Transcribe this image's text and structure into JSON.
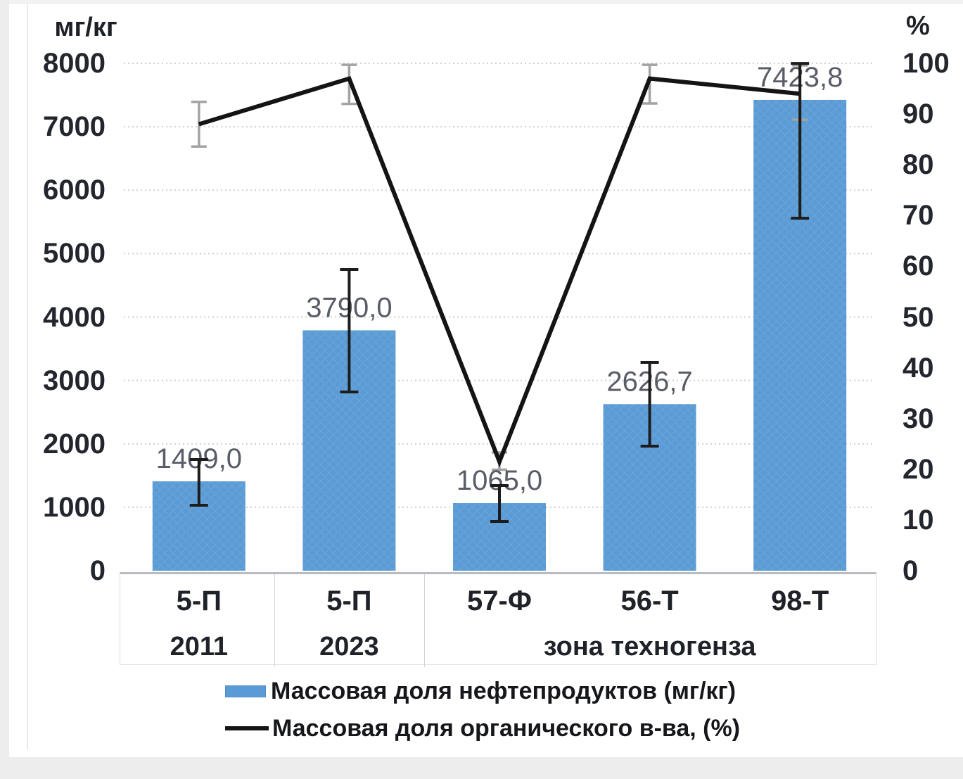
{
  "chart_data": {
    "type": "combo-bar-line",
    "categories": [
      "5-П",
      "5-П",
      "57-Ф",
      "56-Т",
      "98-Т"
    ],
    "category_groups": [
      {
        "label": "2011",
        "span": 1
      },
      {
        "label": "2023",
        "span": 1
      },
      {
        "label": "зона техногенза",
        "span": 3
      }
    ],
    "left_axis": {
      "unit": "мг/кг",
      "min": 0,
      "max": 8000,
      "step": 1000,
      "ticks": [
        "8000",
        "7000",
        "6000",
        "5000",
        "4000",
        "3000",
        "2000",
        "1000",
        "0"
      ]
    },
    "right_axis": {
      "unit": "%",
      "min": 0,
      "max": 100,
      "step": 10,
      "ticks": [
        "100",
        "90",
        "80",
        "70",
        "60",
        "50",
        "40",
        "30",
        "20",
        "10",
        "0"
      ]
    },
    "bar_series": {
      "name": "Массовая доля нефтепродуктов (мг/кг)",
      "color": "#5b9bd5",
      "values": [
        1409.0,
        3790.0,
        1065.0,
        2626.7,
        7423.8
      ],
      "labels": [
        "1409,0",
        "3790,0",
        "1065,0",
        "2626,7",
        "7423,8"
      ],
      "error_low": [
        1032,
        2818,
        777,
        1964,
        5558
      ],
      "error_high": [
        1753,
        4749,
        1342,
        3284,
        7999
      ],
      "error_color": "#1c1c1c"
    },
    "line_series": {
      "name": "Массовая доля органического в-ва, (%)",
      "color": "#141414",
      "values": [
        88,
        97,
        21.5,
        97,
        94
      ],
      "error_low": [
        83.6,
        92.0,
        19.9,
        92.1,
        88.9
      ],
      "error_high": [
        92.4,
        99.7,
        23.3,
        99.7,
        99.6
      ],
      "error_color": "#a3a3a3"
    },
    "grid": {
      "color": "#cfcfcf",
      "style": "dotted"
    },
    "label_color": "#585d68"
  }
}
